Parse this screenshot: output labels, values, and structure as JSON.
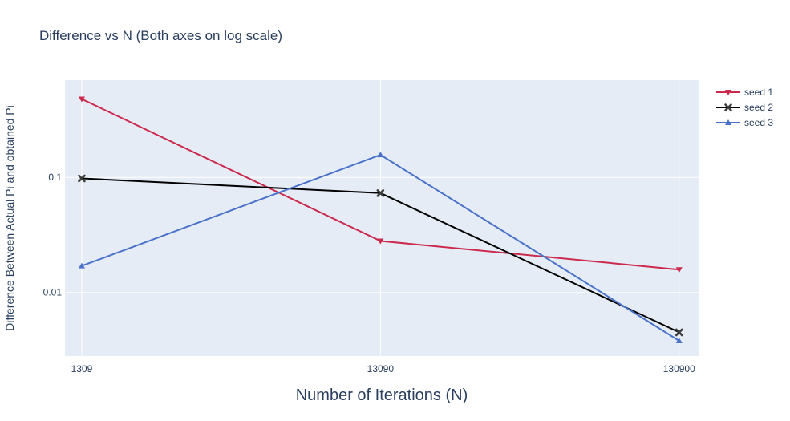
{
  "chart_data": {
    "type": "line",
    "title": "Difference vs N (Both axes on log scale)",
    "xlabel": "Number of Iterations (N)",
    "ylabel": "Difference Between Actual Pi and obtained Pi",
    "x_scale": "log",
    "y_scale": "log",
    "x": [
      1309,
      13090,
      130900
    ],
    "x_tick_labels": [
      "1309",
      "13090",
      "130900"
    ],
    "y_tick_values": [
      0.1,
      0.01
    ],
    "y_tick_labels": [
      "0.1",
      "0.01"
    ],
    "xlim": [
      1150,
      153000
    ],
    "ylim": [
      0.0028,
      0.7
    ],
    "grid": true,
    "legend_position": "top-right",
    "background_color": "#e5ecf6",
    "series": [
      {
        "name": "seed 1",
        "values": [
          0.48,
          0.028,
          0.0158
        ],
        "color": "#cb2a4d",
        "marker": "triangle-down"
      },
      {
        "name": "seed 2",
        "values": [
          0.098,
          0.073,
          0.0045
        ],
        "color": "#000000",
        "marker": "x"
      },
      {
        "name": "seed 3",
        "values": [
          0.017,
          0.157,
          0.0038
        ],
        "color": "#4a72c8",
        "marker": "triangle-up"
      }
    ]
  }
}
